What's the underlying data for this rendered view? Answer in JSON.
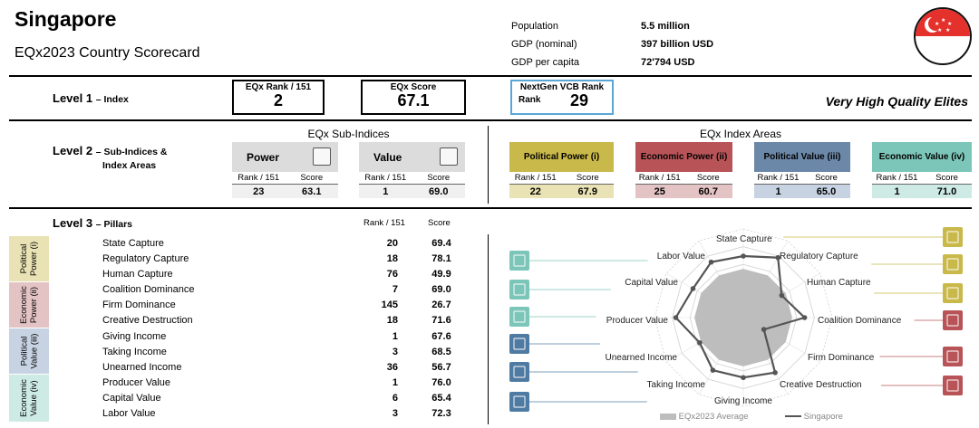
{
  "header": {
    "country": "Singapore",
    "subtitle": "EQx2023 Country Scorecard",
    "stats": [
      {
        "label": "Population",
        "value": "5.5  million"
      },
      {
        "label": "GDP (nominal)",
        "value": "397  billion USD"
      },
      {
        "label": "GDP per capita",
        "value": "72'794  USD"
      }
    ]
  },
  "level1": {
    "label": "Level 1",
    "sublabel": "– Index",
    "rank_title": "EQx Rank / 151",
    "rank_value": "2",
    "score_title": "EQx Score",
    "score_value": "67.1",
    "nextgen_title": "NextGen VCB Rank",
    "nextgen_rank_label": "Rank",
    "nextgen_value": "29",
    "category": "Very High Quality Elites"
  },
  "level2": {
    "label": "Level 2",
    "sublabel": "– Sub-Indices &",
    "sublabel2": "Index Areas",
    "subindices_title": "EQx Sub-Indices",
    "areas_title": "EQx Index Areas",
    "rank_header": "Rank / 151",
    "score_header": "Score",
    "subindices": [
      {
        "name": "Power",
        "rank": "23",
        "score": "63.1"
      },
      {
        "name": "Value",
        "rank": "1",
        "score": "69.0"
      }
    ],
    "areas": [
      {
        "name": "Political Power (i)",
        "rank": "22",
        "score": "67.9",
        "color": "#c9b94a",
        "light": "#e9e2b4"
      },
      {
        "name": "Economic Power (ii)",
        "rank": "25",
        "score": "60.7",
        "color": "#b85458",
        "light": "#e4c3c5"
      },
      {
        "name": "Political Value (iii)",
        "rank": "1",
        "score": "65.0",
        "color": "#6c88a8",
        "light": "#c7d3e2"
      },
      {
        "name": "Economic Value (iv)",
        "rank": "1",
        "score": "71.0",
        "color": "#7cc6b9",
        "light": "#cdeae4"
      }
    ]
  },
  "level3": {
    "label": "Level 3",
    "sublabel": "– Pillars",
    "rank_header": "Rank / 151",
    "score_header": "Score",
    "groups": [
      {
        "label1": "Political",
        "label2": "Power (i)",
        "color": "#e9e2b4"
      },
      {
        "label1": "Economic",
        "label2": "Power (ii)",
        "color": "#e4c3c5"
      },
      {
        "label1": "Political",
        "label2": "Value (iii)",
        "color": "#c7d3e2"
      },
      {
        "label1": "Economic",
        "label2": "Value (iv)",
        "color": "#cdeae4"
      }
    ],
    "pillars": [
      {
        "name": "State Capture",
        "rank": "20",
        "score": "69.4"
      },
      {
        "name": "Regulatory Capture",
        "rank": "18",
        "score": "78.1"
      },
      {
        "name": "Human Capture",
        "rank": "76",
        "score": "49.9"
      },
      {
        "name": "Coalition Dominance",
        "rank": "7",
        "score": "69.0"
      },
      {
        "name": "Firm Dominance",
        "rank": "145",
        "score": "26.7"
      },
      {
        "name": "Creative Destruction",
        "rank": "18",
        "score": "71.6"
      },
      {
        "name": "Giving Income",
        "rank": "1",
        "score": "67.6"
      },
      {
        "name": "Taking Income",
        "rank": "3",
        "score": "68.5"
      },
      {
        "name": "Unearned Income",
        "rank": "36",
        "score": "56.7"
      },
      {
        "name": "Producer Value",
        "rank": "1",
        "score": "76.0"
      },
      {
        "name": "Capital Value",
        "rank": "6",
        "score": "65.4"
      },
      {
        "name": "Labor Value",
        "rank": "3",
        "score": "72.3"
      }
    ]
  },
  "radar": {
    "legend_average": "EQx2023 Average",
    "legend_country": "Singapore",
    "average_values": [
      55,
      55,
      55,
      55,
      55,
      55,
      55,
      55,
      55,
      55,
      55,
      55
    ],
    "country_values": [
      69.4,
      78.1,
      49.9,
      69.0,
      26.7,
      71.6,
      67.6,
      68.5,
      56.7,
      76.0,
      65.4,
      72.3
    ],
    "colors": {
      "political_power": "#c9b94a",
      "economic_power": "#b85458",
      "political_value": "#4f7ba3",
      "economic_value": "#7cc6b9"
    },
    "icons": [
      "state-capture-icon",
      "regulatory-capture-icon",
      "human-capture-icon",
      "coalition-dominance-icon",
      "firm-dominance-icon",
      "creative-destruction-icon",
      "labor-value-icon",
      "capital-value-icon",
      "producer-value-icon",
      "unearned-income-icon",
      "taking-income-icon",
      "giving-income-icon"
    ]
  }
}
